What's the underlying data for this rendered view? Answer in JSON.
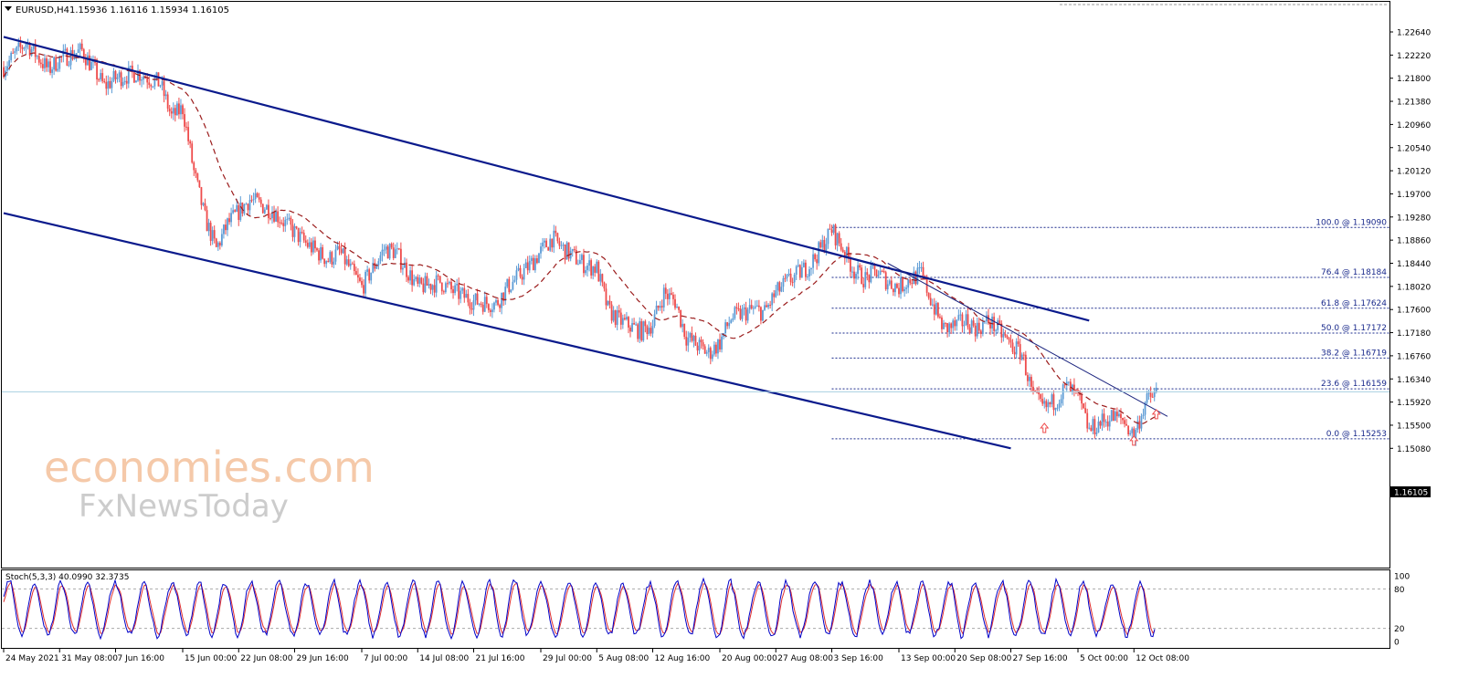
{
  "header": {
    "symbol": "EURUSD,H4",
    "ohlc": "1.15936 1.16116 1.15934 1.16105"
  },
  "watermark": {
    "line1": "economies.com",
    "line2": "FxNewsToday"
  },
  "chart_data": {
    "type": "candlestick",
    "symbol": "EURUSD",
    "timeframe": "H4",
    "current_price": "1.16105",
    "price_ticks": [
      "1.22640",
      "1.22220",
      "1.21800",
      "1.21380",
      "1.20960",
      "1.20540",
      "1.20120",
      "1.19700",
      "1.19280",
      "1.18860",
      "1.18440",
      "1.18020",
      "1.17600",
      "1.17180",
      "1.16760",
      "1.16340",
      "1.15920",
      "1.15500",
      "1.15080"
    ],
    "time_ticks": [
      "24 May 2021",
      "31 May 08:00",
      "7 Jun 16:00",
      "15 Jun 00:00",
      "22 Jun 08:00",
      "29 Jun 16:00",
      "7 Jul 00:00",
      "14 Jul 08:00",
      "21 Jul 16:00",
      "29 Jul 00:00",
      "5 Aug 08:00",
      "12 Aug 16:00",
      "20 Aug 00:00",
      "27 Aug 08:00",
      "3 Sep 16:00",
      "13 Sep 00:00",
      "20 Sep 08:00",
      "27 Sep 16:00",
      "5 Oct 00:00",
      "12 Oct 08:00"
    ],
    "close_path": [
      {
        "date": "24 May 2021",
        "price": 1.22
      },
      {
        "date": "26 May",
        "price": 1.2245
      },
      {
        "date": "28 May",
        "price": 1.2195
      },
      {
        "date": "31 May",
        "price": 1.2215
      },
      {
        "date": "2 Jun",
        "price": 1.223
      },
      {
        "date": "4 Jun",
        "price": 1.2165
      },
      {
        "date": "7 Jun",
        "price": 1.218
      },
      {
        "date": "9 Jun",
        "price": 1.219
      },
      {
        "date": "11 Jun",
        "price": 1.217
      },
      {
        "date": "14 Jun",
        "price": 1.211
      },
      {
        "date": "15 Jun",
        "price": 1.2125
      },
      {
        "date": "16 Jun",
        "price": 1.201
      },
      {
        "date": "17 Jun",
        "price": 1.1925
      },
      {
        "date": "18 Jun",
        "price": 1.187
      },
      {
        "date": "21 Jun",
        "price": 1.1915
      },
      {
        "date": "23 Jun",
        "price": 1.196
      },
      {
        "date": "25 Jun",
        "price": 1.194
      },
      {
        "date": "28 Jun",
        "price": 1.192
      },
      {
        "date": "30 Jun",
        "price": 1.188
      },
      {
        "date": "2 Jul",
        "price": 1.185
      },
      {
        "date": "5 Jul",
        "price": 1.1865
      },
      {
        "date": "7 Jul",
        "price": 1.18
      },
      {
        "date": "9 Jul",
        "price": 1.187
      },
      {
        "date": "12 Jul",
        "price": 1.1865
      },
      {
        "date": "14 Jul",
        "price": 1.18
      },
      {
        "date": "16 Jul",
        "price": 1.181
      },
      {
        "date": "19 Jul",
        "price": 1.1795
      },
      {
        "date": "21 Jul",
        "price": 1.1775
      },
      {
        "date": "23 Jul",
        "price": 1.177
      },
      {
        "date": "26 Jul",
        "price": 1.18
      },
      {
        "date": "28 Jul",
        "price": 1.184
      },
      {
        "date": "30 Jul",
        "price": 1.189
      },
      {
        "date": "2 Aug",
        "price": 1.187
      },
      {
        "date": "4 Aug",
        "price": 1.184
      },
      {
        "date": "5 Aug",
        "price": 1.1835
      },
      {
        "date": "6 Aug",
        "price": 1.176
      },
      {
        "date": "9 Aug",
        "price": 1.174
      },
      {
        "date": "11 Aug",
        "price": 1.172
      },
      {
        "date": "12 Aug",
        "price": 1.1735
      },
      {
        "date": "13 Aug",
        "price": 1.179
      },
      {
        "date": "16 Aug",
        "price": 1.1775
      },
      {
        "date": "17 Aug",
        "price": 1.171
      },
      {
        "date": "19 Aug",
        "price": 1.168
      },
      {
        "date": "20 Aug",
        "price": 1.17
      },
      {
        "date": "23 Aug",
        "price": 1.1745
      },
      {
        "date": "25 Aug",
        "price": 1.176
      },
      {
        "date": "26 Aug",
        "price": 1.1755
      },
      {
        "date": "27 Aug",
        "price": 1.179
      },
      {
        "date": "30 Aug",
        "price": 1.181
      },
      {
        "date": "1 Sep",
        "price": 1.184
      },
      {
        "date": "2 Sep",
        "price": 1.187
      },
      {
        "date": "3 Sep",
        "price": 1.1905
      },
      {
        "date": "6 Sep",
        "price": 1.187
      },
      {
        "date": "7 Sep",
        "price": 1.183
      },
      {
        "date": "8 Sep",
        "price": 1.1815
      },
      {
        "date": "9 Sep",
        "price": 1.183
      },
      {
        "date": "10 Sep",
        "price": 1.181
      },
      {
        "date": "13 Sep",
        "price": 1.18
      },
      {
        "date": "14 Sep",
        "price": 1.1815
      },
      {
        "date": "15 Sep",
        "price": 1.1825
      },
      {
        "date": "16 Sep",
        "price": 1.177
      },
      {
        "date": "17 Sep",
        "price": 1.1725
      },
      {
        "date": "20 Sep",
        "price": 1.173
      },
      {
        "date": "21 Sep",
        "price": 1.174
      },
      {
        "date": "22 Sep",
        "price": 1.1725
      },
      {
        "date": "23 Sep",
        "price": 1.174
      },
      {
        "date": "24 Sep",
        "price": 1.172
      },
      {
        "date": "27 Sep",
        "price": 1.1695
      },
      {
        "date": "28 Sep",
        "price": 1.168
      },
      {
        "date": "29 Sep",
        "price": 1.16
      },
      {
        "date": "30 Sep",
        "price": 1.158
      },
      {
        "date": "1 Oct",
        "price": 1.1595
      },
      {
        "date": "4 Oct",
        "price": 1.162
      },
      {
        "date": "5 Oct",
        "price": 1.16
      },
      {
        "date": "6 Oct",
        "price": 1.154
      },
      {
        "date": "7 Oct",
        "price": 1.1555
      },
      {
        "date": "8 Oct",
        "price": 1.1565
      },
      {
        "date": "11 Oct",
        "price": 1.156
      },
      {
        "date": "12 Oct",
        "price": 1.153
      },
      {
        "date": "13 Oct",
        "price": 1.159
      },
      {
        "date": "14 Oct",
        "price": 1.161
      }
    ],
    "moving_average_style": "dashed brown",
    "channel_lines": [
      {
        "name": "channel-upper",
        "from": {
          "date": "24 May 2021",
          "price": 1.2255
        },
        "to": {
          "date": "6 Oct",
          "price": 1.174
        }
      },
      {
        "name": "channel-lower",
        "from": {
          "date": "24 May 2021",
          "price": 1.1935
        },
        "to": {
          "date": "27 Sep",
          "price": 1.1508
        }
      }
    ],
    "trend_line": {
      "from": {
        "date": "10 Sep",
        "price": 1.1844
      },
      "to": {
        "date": "15 Oct",
        "price": 1.1566
      }
    },
    "fibonacci": [
      {
        "label": "100.0 @ 1.19090",
        "price": 1.1909
      },
      {
        "label": "76.4 @ 1.18184",
        "price": 1.18184
      },
      {
        "label": "61.8 @ 1.17624",
        "price": 1.17624
      },
      {
        "label": "50.0 @ 1.17172",
        "price": 1.17172
      },
      {
        "label": "38.2 @ 1.16719",
        "price": 1.16719
      },
      {
        "label": "23.6 @ 1.16159",
        "price": 1.16159
      },
      {
        "label": "0.0 @ 1.15253",
        "price": 1.15253
      }
    ],
    "fractal_arrows": [
      {
        "date": "30 Sep",
        "price": 1.1545
      },
      {
        "date": "12 Oct",
        "price": 1.1522
      },
      {
        "date": "14 Oct",
        "price": 1.157
      }
    ],
    "indicator": {
      "label": "Stoch(5,3,3) 40.0990 32.3735",
      "ticks": [
        "100",
        "80",
        "20",
        "0"
      ],
      "levels": [
        80,
        20
      ],
      "main_color": "#0000c8",
      "signal_color": "#e03030"
    },
    "colors": {
      "bull_candle": "#5b9bd5",
      "bear_candle": "#ee4b4b",
      "channel": "#0a1a8c",
      "fib": "#1a2a8c",
      "ma": "#9b1c1c",
      "price_tag_bg": "#000000"
    }
  }
}
